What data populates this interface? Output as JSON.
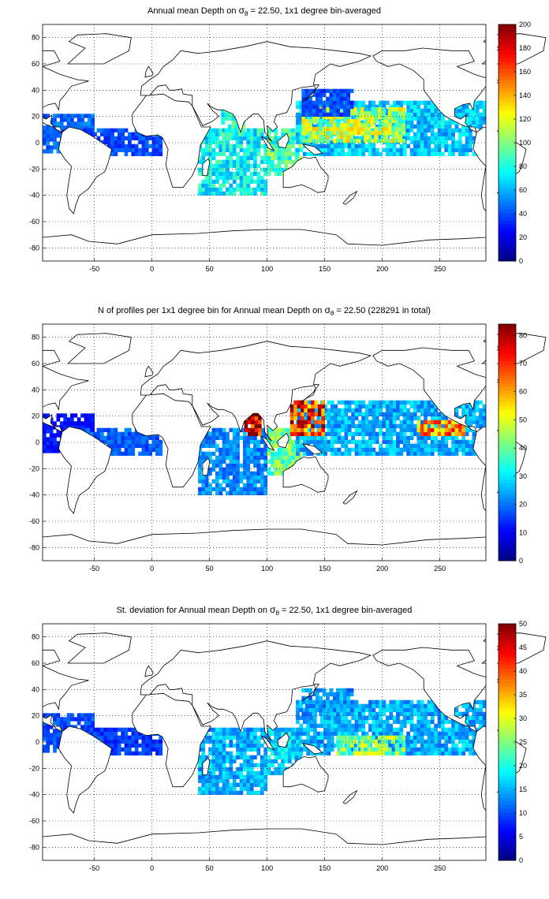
{
  "chart_data": [
    {
      "type": "heatmap",
      "title_main": "Annual mean Depth on ",
      "title_sym": "σ",
      "title_sub": "θ",
      "title_rest": " = 22.50, 1x1 degree bin-averaged",
      "xlim": [
        -95,
        290
      ],
      "ylim": [
        -90,
        90
      ],
      "xticks": [
        -50,
        0,
        50,
        100,
        150,
        200,
        250
      ],
      "yticks": [
        -80,
        -60,
        -40,
        -20,
        0,
        20,
        40,
        60,
        80
      ],
      "grid": true,
      "colorbar": {
        "min": 0,
        "max": 200,
        "ticks": [
          0,
          20,
          40,
          60,
          80,
          100,
          120,
          140,
          160,
          180,
          200
        ]
      },
      "regions": [
        {
          "x": [
            -95,
            -50
          ],
          "y": [
            -8,
            20
          ],
          "value": 45
        },
        {
          "x": [
            -60,
            8
          ],
          "y": [
            -10,
            10
          ],
          "value": 40
        },
        {
          "x": [
            40,
            100
          ],
          "y": [
            -40,
            10
          ],
          "value": 75
        },
        {
          "x": [
            60,
            80
          ],
          "y": [
            5,
            25
          ],
          "value": 85
        },
        {
          "x": [
            100,
            130
          ],
          "y": [
            -25,
            10
          ],
          "value": 90
        },
        {
          "x": [
            125,
            290
          ],
          "y": [
            -10,
            30
          ],
          "value": 65
        },
        {
          "x": [
            130,
            220
          ],
          "y": [
            0,
            25
          ],
          "value": 110
        },
        {
          "x": [
            130,
            175
          ],
          "y": [
            20,
            40
          ],
          "value": 40
        }
      ]
    },
    {
      "type": "heatmap",
      "title_main": "N of profiles per 1x1 degree bin for Annual mean Depth on ",
      "title_sym": "σ",
      "title_sub": "θ",
      "title_rest": " = 22.50 (228291 in total)",
      "xlim": [
        -95,
        290
      ],
      "ylim": [
        -90,
        90
      ],
      "xticks": [
        -50,
        0,
        50,
        100,
        150,
        200,
        250
      ],
      "yticks": [
        -80,
        -60,
        -40,
        -20,
        0,
        20,
        40,
        60,
        80
      ],
      "grid": true,
      "colorbar": {
        "min": 0,
        "max": 84,
        "ticks": [
          0,
          10,
          20,
          30,
          40,
          50,
          60,
          70,
          80
        ]
      },
      "regions": [
        {
          "x": [
            -95,
            -50
          ],
          "y": [
            -8,
            20
          ],
          "value": 12
        },
        {
          "x": [
            -60,
            8
          ],
          "y": [
            -10,
            10
          ],
          "value": 18
        },
        {
          "x": [
            40,
            100
          ],
          "y": [
            -40,
            10
          ],
          "value": 22
        },
        {
          "x": [
            80,
            95
          ],
          "y": [
            5,
            22
          ],
          "value": 82
        },
        {
          "x": [
            100,
            130
          ],
          "y": [
            -25,
            10
          ],
          "value": 40
        },
        {
          "x": [
            125,
            290
          ],
          "y": [
            -10,
            30
          ],
          "value": 25
        },
        {
          "x": [
            120,
            150
          ],
          "y": [
            5,
            30
          ],
          "value": 70
        },
        {
          "x": [
            230,
            270
          ],
          "y": [
            5,
            15
          ],
          "value": 60
        }
      ]
    },
    {
      "type": "heatmap",
      "title_main": "St. deviation for Annual mean Depth on ",
      "title_sym": "σ",
      "title_sub": "θ",
      "title_rest": " = 22.50, 1x1 degree bin-averaged",
      "xlim": [
        -95,
        290
      ],
      "ylim": [
        -90,
        90
      ],
      "xticks": [
        -50,
        0,
        50,
        100,
        150,
        200,
        250
      ],
      "yticks": [
        -80,
        -60,
        -40,
        -20,
        0,
        20,
        40,
        60,
        80
      ],
      "grid": true,
      "colorbar": {
        "min": 0,
        "max": 50,
        "ticks": [
          0,
          5,
          10,
          15,
          20,
          25,
          30,
          35,
          40,
          45,
          50
        ]
      },
      "regions": [
        {
          "x": [
            -95,
            -50
          ],
          "y": [
            -8,
            20
          ],
          "value": 10
        },
        {
          "x": [
            -60,
            8
          ],
          "y": [
            -10,
            10
          ],
          "value": 9
        },
        {
          "x": [
            40,
            100
          ],
          "y": [
            -40,
            10
          ],
          "value": 15
        },
        {
          "x": [
            100,
            130
          ],
          "y": [
            -25,
            10
          ],
          "value": 17
        },
        {
          "x": [
            125,
            290
          ],
          "y": [
            -10,
            30
          ],
          "value": 15
        },
        {
          "x": [
            160,
            220
          ],
          "y": [
            -10,
            5
          ],
          "value": 26
        },
        {
          "x": [
            130,
            175
          ],
          "y": [
            20,
            40
          ],
          "value": 14
        }
      ]
    }
  ]
}
